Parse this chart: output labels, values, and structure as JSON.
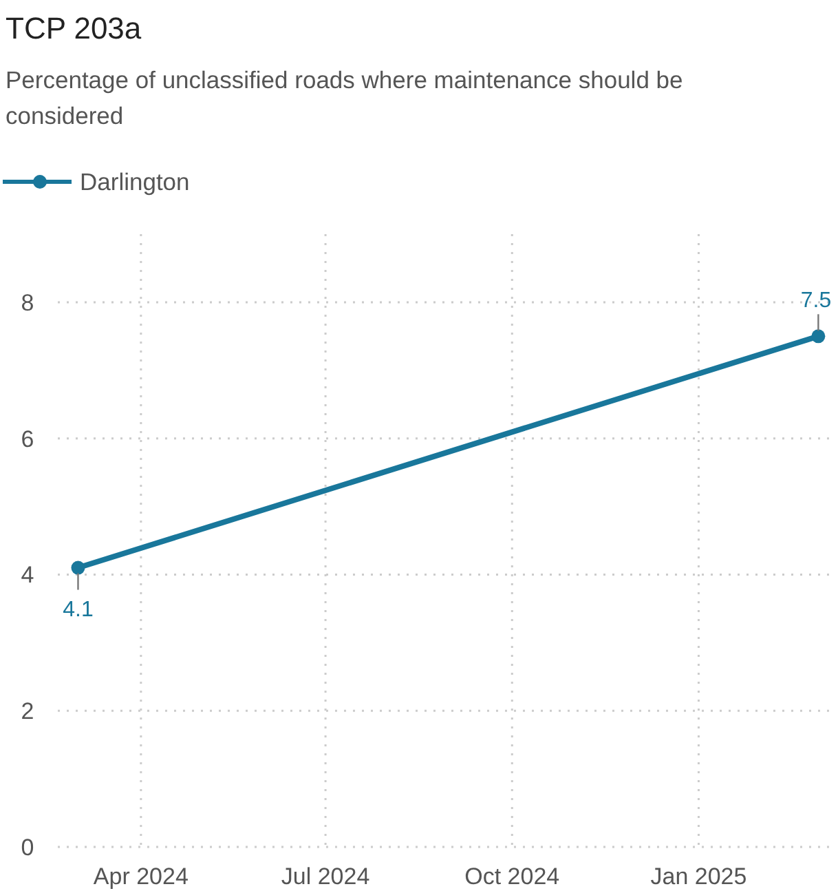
{
  "chart_data": {
    "type": "line",
    "title": "TCP 203a",
    "subtitle": "Percentage of unclassified roads where maintenance should be considered",
    "x": [
      "2024-03-01",
      "2025-03-01"
    ],
    "series": [
      {
        "name": "Darlington",
        "color": "#19779b",
        "values": [
          4.1,
          7.5
        ]
      }
    ],
    "xlim": [
      "2024-02-20",
      "2025-03-08"
    ],
    "xticks": [
      {
        "value": "2024-04-01",
        "label": "Apr 2024"
      },
      {
        "value": "2024-07-01",
        "label": "Jul 2024"
      },
      {
        "value": "2024-10-01",
        "label": "Oct 2024"
      },
      {
        "value": "2025-01-01",
        "label": "Jan 2025"
      }
    ],
    "ylim": [
      0,
      9
    ],
    "yticks": [
      0,
      2,
      4,
      6,
      8
    ],
    "grid": true,
    "legend": "top left",
    "marker": "circle",
    "line_style": "solid",
    "data_labels": true
  }
}
